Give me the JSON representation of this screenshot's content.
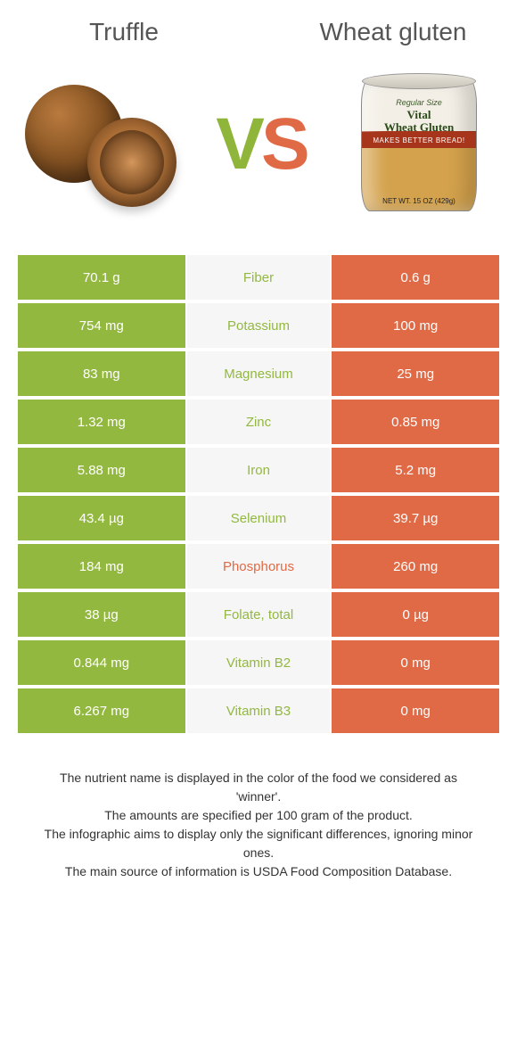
{
  "colors": {
    "left": "#93b840",
    "right": "#e06a46",
    "mid_bg": "#f6f6f6",
    "text_white": "#ffffff"
  },
  "header": {
    "left_title": "Truffle",
    "right_title": "Wheat gluten"
  },
  "vs": {
    "v": "V",
    "s": "S"
  },
  "can": {
    "size_label": "Regular Size",
    "title_line1": "Vital",
    "title_line2": "Wheat Gluten",
    "red_band": "MAKES BETTER BREAD!",
    "net": "NET WT. 15 OZ (429g)"
  },
  "rows": [
    {
      "left": "70.1 g",
      "label": "Fiber",
      "right": "0.6 g",
      "winner": "left"
    },
    {
      "left": "754 mg",
      "label": "Potassium",
      "right": "100 mg",
      "winner": "left"
    },
    {
      "left": "83 mg",
      "label": "Magnesium",
      "right": "25 mg",
      "winner": "left"
    },
    {
      "left": "1.32 mg",
      "label": "Zinc",
      "right": "0.85 mg",
      "winner": "left"
    },
    {
      "left": "5.88 mg",
      "label": "Iron",
      "right": "5.2 mg",
      "winner": "left"
    },
    {
      "left": "43.4 µg",
      "label": "Selenium",
      "right": "39.7 µg",
      "winner": "left"
    },
    {
      "left": "184 mg",
      "label": "Phosphorus",
      "right": "260 mg",
      "winner": "right"
    },
    {
      "left": "38 µg",
      "label": "Folate, total",
      "right": "0 µg",
      "winner": "left"
    },
    {
      "left": "0.844 mg",
      "label": "Vitamin B2",
      "right": "0 mg",
      "winner": "left"
    },
    {
      "left": "6.267 mg",
      "label": "Vitamin B3",
      "right": "0 mg",
      "winner": "left"
    }
  ],
  "footer": {
    "l1": "The nutrient name is displayed in the color of the food we considered as 'winner'.",
    "l2": "The amounts are specified per 100 gram of the product.",
    "l3": "The infographic aims to display only the significant differences, ignoring minor ones.",
    "l4": "The main source of information is USDA Food Composition Database."
  }
}
